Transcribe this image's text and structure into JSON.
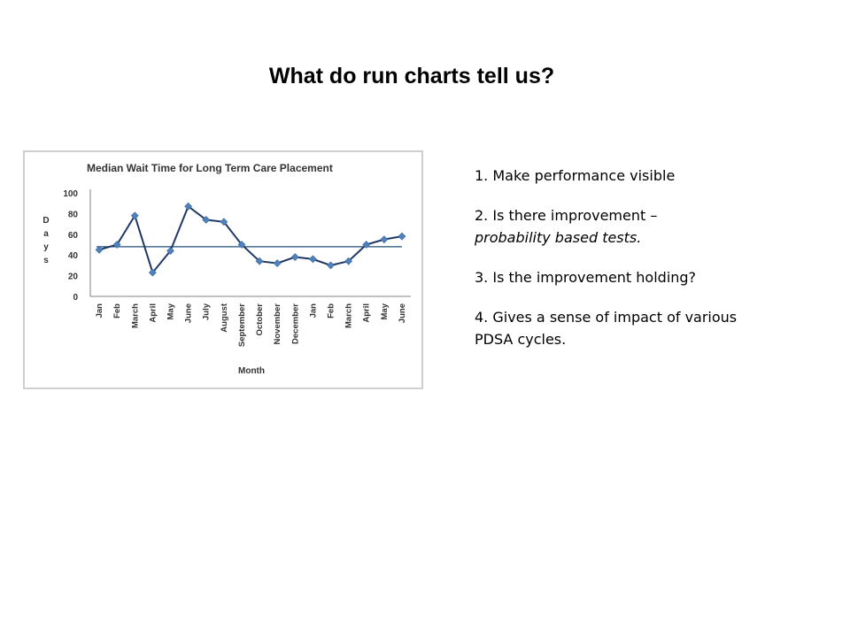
{
  "slide": {
    "title": "What do run charts tell us?"
  },
  "notes": {
    "items": [
      {
        "line1": "1. Make performance visible"
      },
      {
        "line1": "2. Is there improvement  –",
        "line2": "probability based tests."
      },
      {
        "line1": "3. Is the improvement holding?"
      },
      {
        "line1": "4. Gives a sense of impact of various",
        "line2": "PDSA cycles."
      }
    ]
  },
  "chart_data": {
    "type": "line",
    "title": "Median Wait Time for Long Term Care Placement",
    "xlabel": "Month",
    "ylabel": "Days",
    "ylim": [
      0,
      100
    ],
    "yticks": [
      "0",
      "20",
      "40",
      "60",
      "80",
      "100"
    ],
    "categories": [
      "Jan",
      "Feb",
      "March",
      "April",
      "May",
      "June",
      "July",
      "August",
      "September",
      "October",
      "November",
      "December",
      "Jan",
      "Feb",
      "March",
      "April",
      "May",
      "June"
    ],
    "series": [
      {
        "values": [
          45,
          50,
          78,
          23,
          44,
          87,
          74,
          72,
          50,
          34,
          32,
          38,
          36,
          30,
          34,
          50,
          55,
          58
        ]
      }
    ],
    "median_line": 48,
    "colors": {
      "line": "#1f3864",
      "marker": "#4f81bd",
      "median": "#1f4e79",
      "axis": "#808080"
    },
    "grid": false
  }
}
